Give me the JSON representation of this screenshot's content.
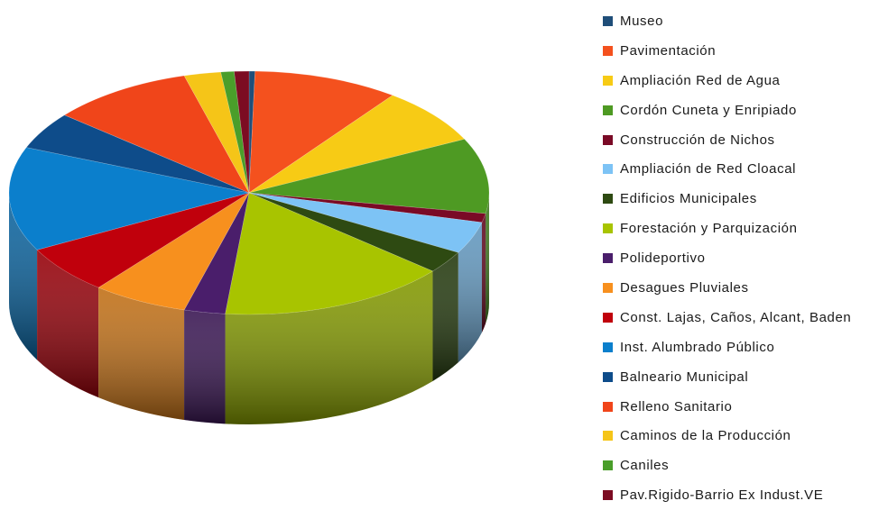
{
  "chart_data": {
    "type": "pie",
    "style": "3d-exploded-none",
    "legend_position": "right",
    "categories": [
      "Museo",
      "Pavimentación",
      "Ampliación Red de Agua",
      "Cordón Cuneta y Enripiado",
      "Construcción de Nichos",
      "Ampliación de Red Cloacal",
      "Edificios Municipales",
      "Forestación y Parquización",
      "Polideportivo",
      "Desagues Pluviales",
      "Const. Lajas, Caños, Alcant, Baden",
      "Inst. Alumbrado Público",
      "Balneario Municipal",
      "Relleno Sanitario",
      "Caminos de la Producción",
      "Caniles",
      "Pav.Rigido-Barrio Ex Indust.VE"
    ],
    "colors": [
      "#1F4E79",
      "#F4511E",
      "#F7CB15",
      "#4E9A23",
      "#7A0A26",
      "#7DC3F5",
      "#2E4A12",
      "#A8C400",
      "#4A1E6B",
      "#F7901E",
      "#C0000C",
      "#0B7FCC",
      "#0E4C8A",
      "#F0451A",
      "#F5C518",
      "#4A9E2A",
      "#7C0C22"
    ],
    "values": [
      0.4,
      9.9,
      7.6,
      10.1,
      1.2,
      4.3,
      3.0,
      15.6,
      2.8,
      6.5,
      6.5,
      14.0,
      5.0,
      9.7,
      2.5,
      0.9,
      1.0
    ]
  }
}
